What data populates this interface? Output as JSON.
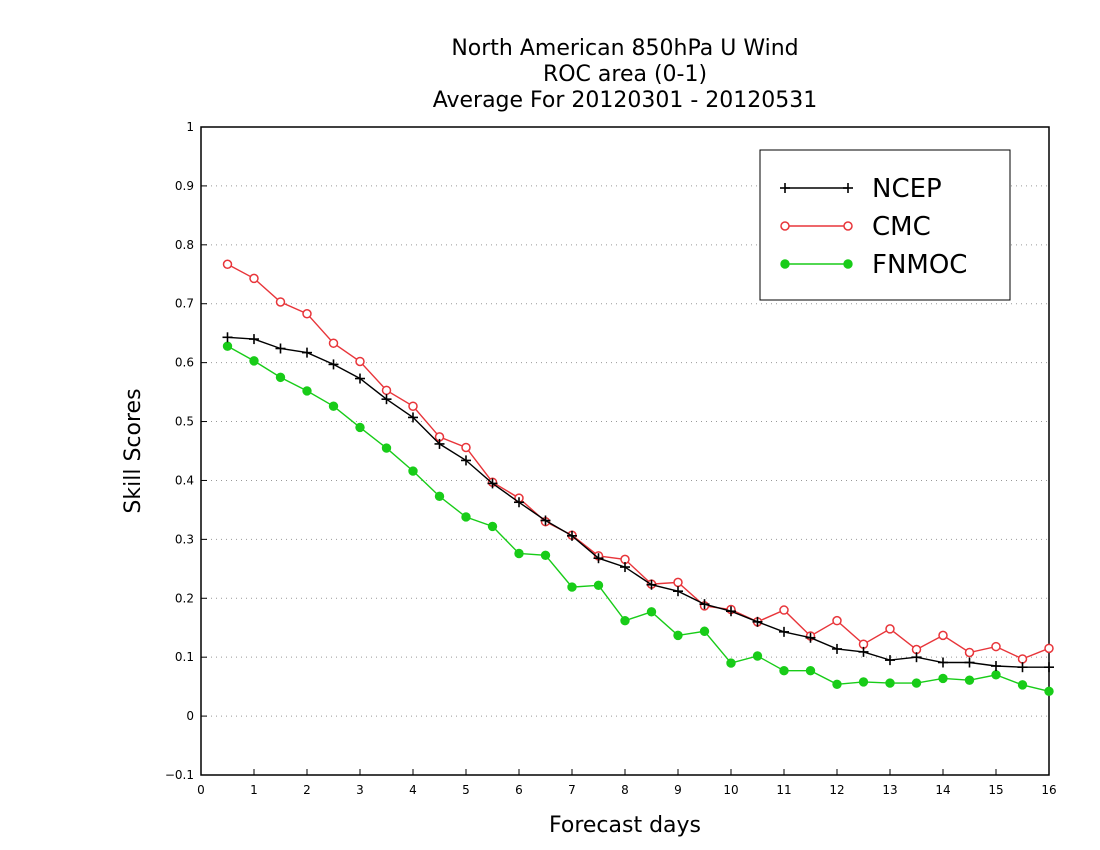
{
  "chart_data": {
    "type": "line",
    "title": [
      "North American 850hPa U Wind",
      "ROC area (0-1)",
      "Average For 20120301 - 20120531"
    ],
    "xlabel": "Forecast days",
    "ylabel": "Skill Scores",
    "xlim": [
      0,
      16
    ],
    "ylim": [
      -0.1,
      1
    ],
    "xticks": [
      "0",
      "1",
      "2",
      "3",
      "4",
      "5",
      "6",
      "7",
      "8",
      "9",
      "10",
      "11",
      "12",
      "13",
      "14",
      "15",
      "16"
    ],
    "yticks": [
      "−0.1",
      "0",
      "0.1",
      "0.2",
      "0.3",
      "0.4",
      "0.5",
      "0.6",
      "0.7",
      "0.8",
      "0.9",
      "1"
    ],
    "grid": "dotted horizontal",
    "legend_position": "top-right",
    "x": [
      0.5,
      1,
      1.5,
      2,
      2.5,
      3,
      3.5,
      4,
      4.5,
      5,
      5.5,
      6,
      6.5,
      7,
      7.5,
      8,
      8.5,
      9,
      9.5,
      10,
      10.5,
      11,
      11.5,
      12,
      12.5,
      13,
      13.5,
      14,
      14.5,
      15,
      15.5,
      16
    ],
    "series": [
      {
        "name": "NCEP",
        "color": "#000000",
        "marker": "plus",
        "values": [
          0.643,
          0.64,
          0.624,
          0.617,
          0.597,
          0.573,
          0.538,
          0.507,
          0.462,
          0.434,
          0.395,
          0.363,
          0.332,
          0.306,
          0.268,
          0.253,
          0.223,
          0.212,
          0.19,
          0.178,
          0.16,
          0.143,
          0.133,
          0.114,
          0.109,
          0.095,
          0.1,
          0.091,
          0.091,
          0.085,
          0.083,
          0.083
        ]
      },
      {
        "name": "CMC",
        "color": "#e8353a",
        "marker": "open-circle",
        "values": [
          0.767,
          0.743,
          0.703,
          0.683,
          0.633,
          0.602,
          0.553,
          0.526,
          0.474,
          0.456,
          0.397,
          0.37,
          0.33,
          0.307,
          0.272,
          0.266,
          0.224,
          0.227,
          0.187,
          0.181,
          0.16,
          0.18,
          0.136,
          0.162,
          0.122,
          0.148,
          0.113,
          0.137,
          0.108,
          0.118,
          0.097,
          0.115
        ]
      },
      {
        "name": "FNMOC",
        "color": "#18cc18",
        "marker": "filled-circle",
        "values": [
          0.628,
          0.603,
          0.575,
          0.552,
          0.526,
          0.49,
          0.455,
          0.416,
          0.373,
          0.338,
          0.322,
          0.276,
          0.273,
          0.219,
          0.222,
          0.162,
          0.177,
          0.137,
          0.144,
          0.09,
          0.102,
          0.077,
          0.077,
          0.054,
          0.058,
          0.056,
          0.056,
          0.064,
          0.061,
          0.07,
          0.053,
          0.042
        ]
      }
    ]
  }
}
